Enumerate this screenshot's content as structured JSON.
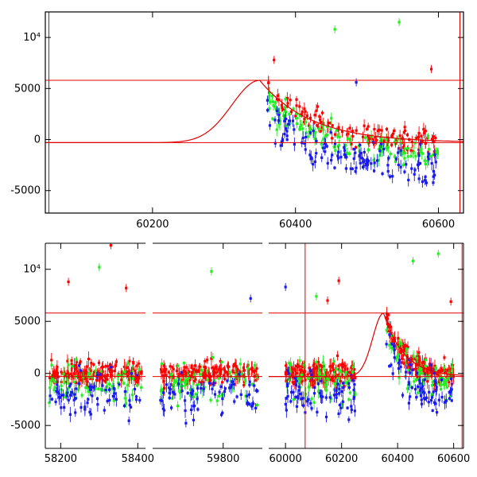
{
  "colors": {
    "red": "#ff0000",
    "green": "#22ee22",
    "blue": "#1a1aee",
    "model": "#e00000",
    "axis": "#000000"
  },
  "chart_data": [
    {
      "type": "scatter",
      "title": "",
      "xlabel": "",
      "ylabel": "",
      "xlim": [
        60050,
        60635
      ],
      "ylim": [
        -7200,
        12500
      ],
      "grid": false,
      "x_ticks": [
        {
          "value": 60200,
          "label": "60200"
        },
        {
          "value": 60400,
          "label": "60400"
        },
        {
          "value": 60600,
          "label": "60600"
        }
      ],
      "y_ticks": [
        {
          "value": -5000,
          "label": "-5000"
        },
        {
          "value": 0,
          "label": "0"
        },
        {
          "value": 5000,
          "label": "5000"
        },
        {
          "value": 10000,
          "label": "10⁴"
        }
      ],
      "reference_lines": {
        "horizontal": [
          5800,
          -300
        ],
        "vertical": [
          60055,
          60630
        ]
      },
      "model_curve": {
        "baseline": -300,
        "peak": 5800,
        "peak_x": 60350,
        "rise_width": 55,
        "decay_to": 60600
      },
      "series": [
        {
          "color_key": "red",
          "x_range": [
            60360,
            60600
          ]
        },
        {
          "color_key": "green",
          "x_range": [
            60360,
            60600
          ]
        },
        {
          "color_key": "blue",
          "x_range": [
            60360,
            60600
          ]
        }
      ],
      "highlight_points": [
        {
          "x": 60455,
          "y": 10800,
          "color_key": "green"
        },
        {
          "x": 60545,
          "y": 11500,
          "color_key": "green"
        },
        {
          "x": 60590,
          "y": 6900,
          "color_key": "red"
        },
        {
          "x": 60370,
          "y": 7800,
          "color_key": "red"
        },
        {
          "x": 60485,
          "y": 5600,
          "color_key": "blue"
        }
      ]
    },
    {
      "type": "scatter",
      "title": "",
      "xlabel": "",
      "ylabel": "",
      "segments": [
        {
          "xlim": [
            58160,
            58420
          ],
          "x_ticks": [
            {
              "value": 58200,
              "label": "58200"
            },
            {
              "value": 58400,
              "label": "58400"
            }
          ]
        },
        {
          "xlim": [
            59620,
            59900
          ],
          "x_ticks": [
            {
              "value": 59800,
              "label": "59800"
            }
          ]
        },
        {
          "xlim": [
            59940,
            60635
          ],
          "x_ticks": [
            {
              "value": 60000,
              "label": "60000"
            },
            {
              "value": 60200,
              "label": "60200"
            },
            {
              "value": 60400,
              "label": "60400"
            },
            {
              "value": 60600,
              "label": "60600"
            }
          ]
        }
      ],
      "ylim": [
        -7200,
        12500
      ],
      "grid": false,
      "y_ticks": [
        {
          "value": -5000,
          "label": "-5000"
        },
        {
          "value": 0,
          "label": "0"
        },
        {
          "value": 5000,
          "label": "5000"
        },
        {
          "value": 10000,
          "label": "10⁴"
        }
      ],
      "reference_lines": {
        "horizontal": [
          5800,
          -300
        ],
        "vertical": [
          60070,
          60630
        ]
      },
      "clusters": [
        {
          "x_range": [
            58170,
            58410
          ]
        },
        {
          "x_range": [
            59640,
            59890
          ]
        },
        {
          "x_range": [
            60000,
            60250
          ]
        },
        {
          "x_range": [
            60360,
            60600
          ]
        }
      ],
      "highlight_points": [
        {
          "x": 58330,
          "y": 12300,
          "color_key": "red"
        },
        {
          "x": 58300,
          "y": 10200,
          "color_key": "green"
        },
        {
          "x": 58220,
          "y": 8800,
          "color_key": "red"
        },
        {
          "x": 58370,
          "y": 8200,
          "color_key": "red"
        },
        {
          "x": 59770,
          "y": 9800,
          "color_key": "green"
        },
        {
          "x": 59870,
          "y": 7200,
          "color_key": "blue"
        },
        {
          "x": 60000,
          "y": 8300,
          "color_key": "blue"
        },
        {
          "x": 60110,
          "y": 7400,
          "color_key": "green"
        },
        {
          "x": 60150,
          "y": 7000,
          "color_key": "red"
        },
        {
          "x": 60190,
          "y": 8900,
          "color_key": "red"
        },
        {
          "x": 60455,
          "y": 10800,
          "color_key": "green"
        },
        {
          "x": 60545,
          "y": 11500,
          "color_key": "green"
        },
        {
          "x": 60590,
          "y": 6900,
          "color_key": "red"
        }
      ]
    }
  ]
}
